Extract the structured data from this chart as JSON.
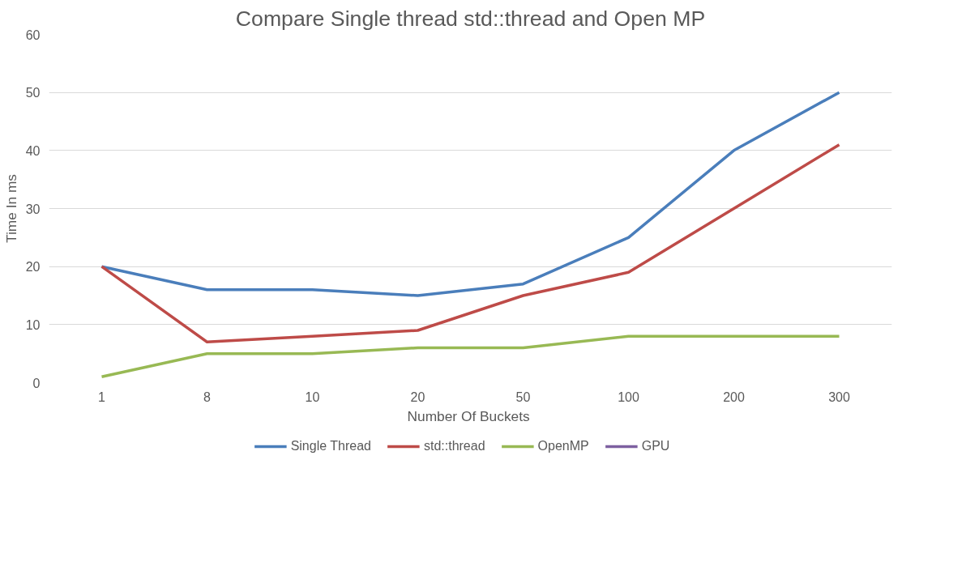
{
  "chart_data": {
    "type": "line",
    "title": "Compare Single thread std::thread and Open MP",
    "xlabel": "Number  Of Buckets",
    "ylabel": "Time In ms",
    "categories": [
      "1",
      "8",
      "10",
      "20",
      "50",
      "100",
      "200",
      "300"
    ],
    "series": [
      {
        "name": "Single Thread",
        "color": "#4a7ebb",
        "values": [
          20,
          16,
          16,
          15,
          17,
          25,
          40,
          50
        ]
      },
      {
        "name": "std::thread",
        "color": "#be4b48",
        "values": [
          20,
          7,
          8,
          9,
          15,
          19,
          30,
          41
        ]
      },
      {
        "name": "OpenMP",
        "color": "#98b954",
        "values": [
          1,
          5,
          5,
          6,
          6,
          8,
          8,
          8
        ]
      },
      {
        "name": "GPU",
        "color": "#7d60a0",
        "values": [
          null,
          null,
          null,
          null,
          null,
          null,
          null,
          null
        ]
      }
    ],
    "ylim": [
      0,
      60
    ],
    "yticks": [
      0,
      10,
      20,
      30,
      40,
      50,
      60
    ],
    "grid": "y",
    "legend": "bottom",
    "marker": "none",
    "line_style": "solid"
  }
}
